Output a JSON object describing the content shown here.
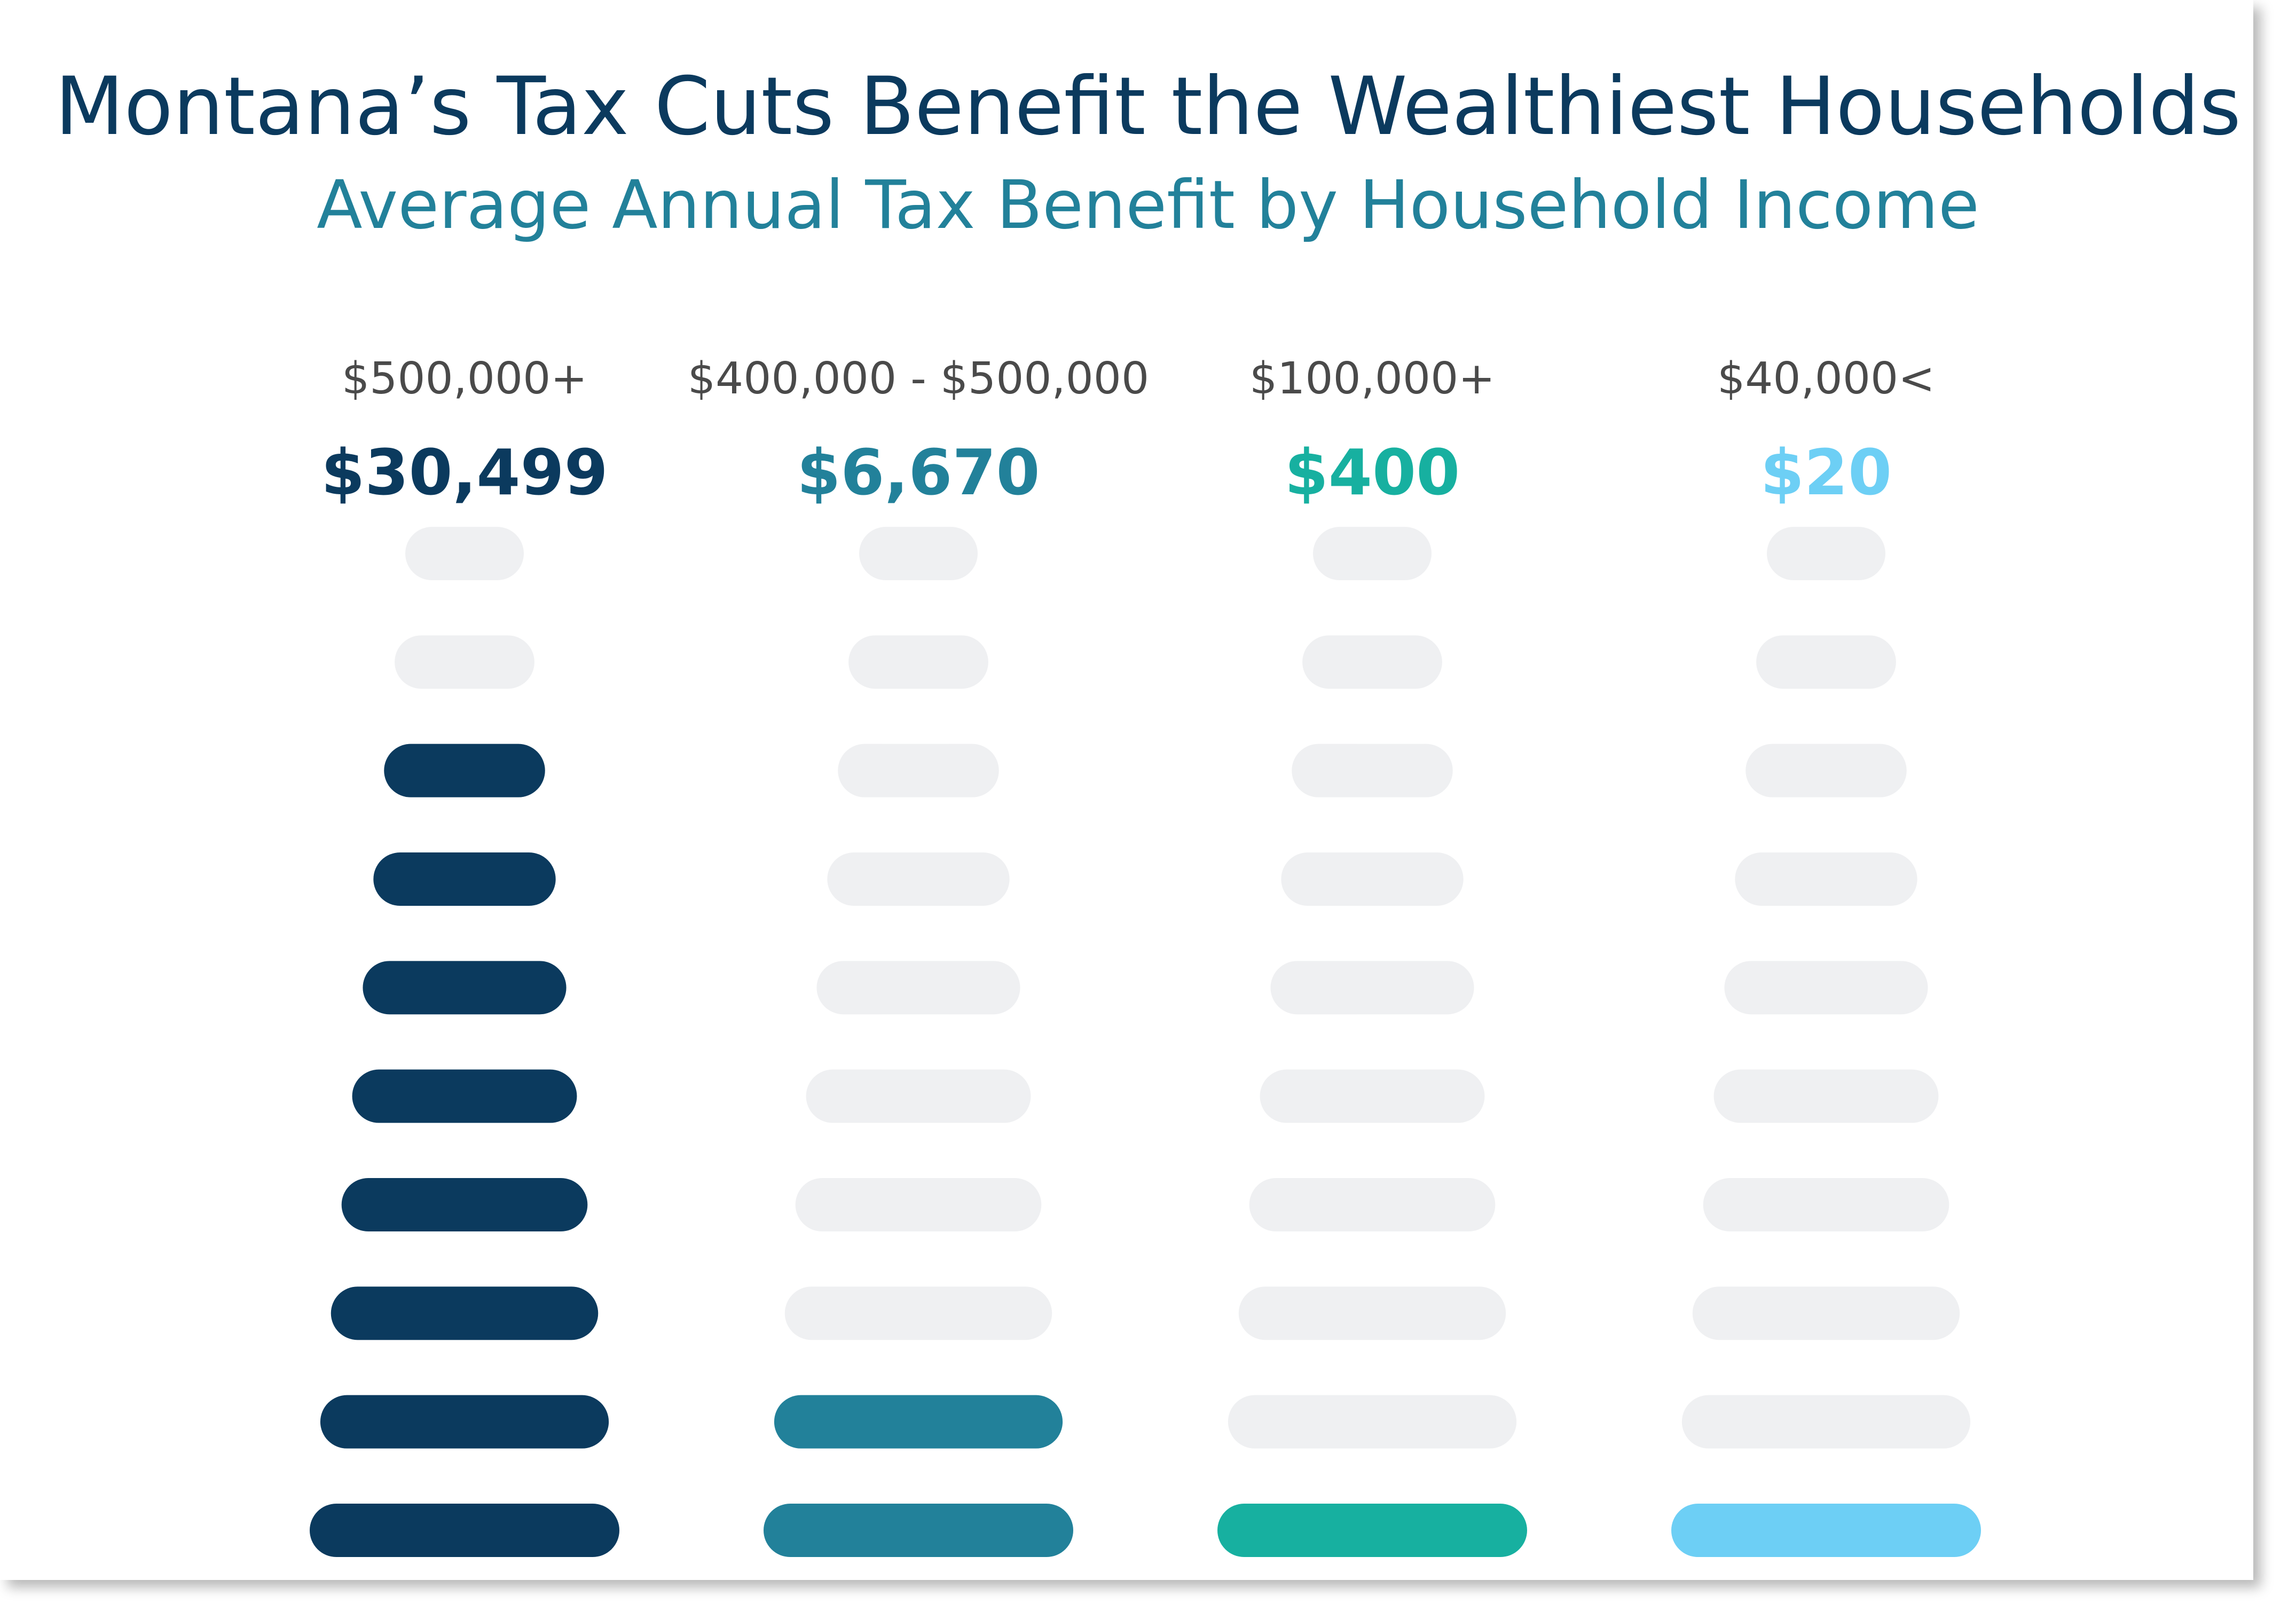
{
  "title": "Montana’s Tax Cuts Benefit the Wealthiest Households",
  "subtitle": "Average Annual Tax Benefit by Household Income",
  "colors": {
    "title": "#0b3a5e",
    "subtitle": "#22819a",
    "inactive_bar": "#eff0f2",
    "label": "#4a4a4a"
  },
  "chart_data": {
    "type": "bar",
    "title": "Montana’s Tax Cuts Benefit the Wealthiest Households",
    "subtitle": "Average Annual Tax Benefit by Household Income",
    "total_segments": 10,
    "categories": [
      "$500,000+",
      "$400,000 - $500,000",
      "$100,000+",
      "$40,000<"
    ],
    "value_labels": [
      "$30,499",
      "$6,670",
      "$400",
      "$20"
    ],
    "values": [
      30499,
      6670,
      400,
      20
    ],
    "filled_segments": [
      8,
      2,
      1,
      1
    ],
    "colors": [
      "#0b3a5e",
      "#22819a",
      "#17b0a0",
      "#6dcff5"
    ]
  }
}
